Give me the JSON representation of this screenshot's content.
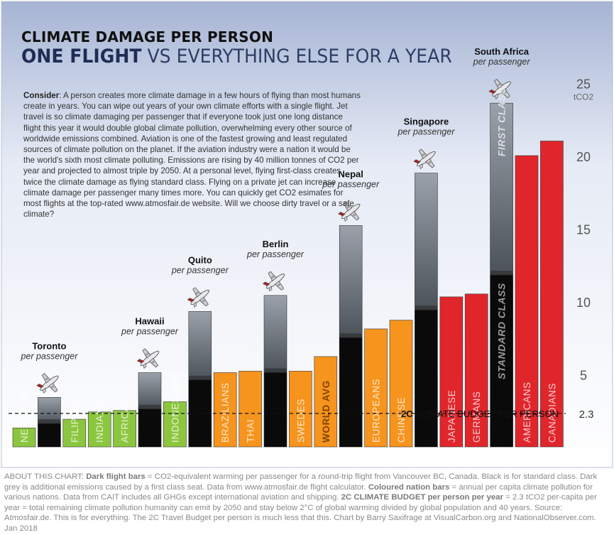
{
  "title": {
    "line1": "CLIMATE DAMAGE PER PERSON",
    "line2_bold": "ONE FLIGHT",
    "line2_rest": " VS EVERYTHING ELSE FOR A YEAR"
  },
  "consider": {
    "label": "Consider",
    "text": ": A person creates more climate damage in a few hours of flying than most humans create in years. You can wipe out years of your own climate efforts with a single flight. Jet travel is so climate damaging per passenger that if everyone took just one long distance flight this year it would double global climate pollution, overwhelming every other source of worldwide emissions combined. Aviation is one of the fastest growing and least regulated sources of climate pollution on the planet. If the aviation industry were a nation it would be the world's sixth most climate polluting. Emissions are rising by 40 million tonnes of CO2 per year and projected to almost triple by 2050. At a personal level, flying first-class creates twice the climate damage as flying standard class. Flying on a private jet can increase climate damage per passenger many times more. You can quickly get CO2 esimates for most flights at the top-rated www.atmosfair.de website. Will we choose dirty travel or a safe climate?"
  },
  "footer": {
    "l1": "ABOUT THIS CHART: ",
    "b1": "Dark flight bars",
    "t1": " = CO2-equivalent warming per passenger for a round-trip flight from Vancouver BC, Canada. Black is for standard class. Dark grey is additional emissions caused by a first class seat. Data from www.atmosfair.de flight calculator. ",
    "b2": "Coloured nation bars",
    "t2": " = annual per capita climate pollution for various nations. Data from CAIT includes all GHGs except international aviation and shipping. ",
    "b3": "2C CLIMATE BUDGET per person per year",
    "t3": " = 2.3 tCO2 per-capita per year = total remaining climate pollution humanity can emit by 2050 and stay below 2°C of global warming divided by global population and 40 years. Source: Atmosfair.de. This is for everything. The 2C Travel Budget per person is much less that this. Chart by Barry Saxifrage at VisualCarbon.org and NationalObserver.com. Jan 2018"
  },
  "chart_data": {
    "type": "bar",
    "ylim": [
      0,
      26
    ],
    "ylabel": "tCO2",
    "yticks": [
      5,
      10,
      15,
      20,
      25
    ],
    "budget": {
      "value": 2.3,
      "label_bold": "2C",
      "label_rest": " CLIMATE BUDGET PER PERSON",
      "tick_label": "2.3"
    },
    "per_passenger": "per passenger",
    "first_class_label": "FIRST CLASS",
    "standard_class_label": "STANDARD CLASS",
    "colors": {
      "green": "#8cc63f",
      "orange": "#f7941d",
      "red": "#e0262b",
      "black": "#0a0a0a",
      "grey": "#6d747c"
    },
    "bars": [
      {
        "kind": "nation",
        "label": "NEPALESE",
        "value": 1.3,
        "color": "green"
      },
      {
        "kind": "flight",
        "city": "Toronto",
        "standard": 1.6,
        "first": 3.4
      },
      {
        "kind": "nation",
        "label": "FILIPINOS",
        "value": 1.9,
        "color": "green"
      },
      {
        "kind": "nation",
        "label": "INDIANS",
        "value": 2.4,
        "color": "green"
      },
      {
        "kind": "nation",
        "label": "AFRICANS",
        "value": 2.5,
        "color": "green"
      },
      {
        "kind": "flight",
        "city": "Hawaii",
        "standard": 2.6,
        "first": 5.1
      },
      {
        "kind": "nation",
        "label": "INDONESIANS",
        "value": 3.1,
        "color": "green"
      },
      {
        "kind": "flight",
        "city": "Quito",
        "standard": 4.6,
        "first": 9.3
      },
      {
        "kind": "nation",
        "label": "BRAZILIANS",
        "value": 5.1,
        "color": "orange"
      },
      {
        "kind": "nation",
        "label": "THAI",
        "value": 5.2,
        "color": "orange"
      },
      {
        "kind": "flight",
        "city": "Berlin",
        "standard": 5.1,
        "first": 10.4
      },
      {
        "kind": "nation",
        "label": "SWEDES",
        "value": 5.2,
        "color": "orange"
      },
      {
        "kind": "nation",
        "label": "WORLD AVG",
        "value": 6.2,
        "color": "orange",
        "bold": true
      },
      {
        "kind": "flight",
        "city": "Nepal",
        "standard": 7.5,
        "first": 15.2
      },
      {
        "kind": "nation",
        "label": "EUROPEANS",
        "value": 8.1,
        "color": "orange"
      },
      {
        "kind": "nation",
        "label": "CHINESE",
        "value": 8.7,
        "color": "orange"
      },
      {
        "kind": "flight",
        "city": "Singapore",
        "standard": 9.4,
        "first": 18.8
      },
      {
        "kind": "nation",
        "label": "JAPANESE",
        "value": 10.3,
        "color": "red"
      },
      {
        "kind": "nation",
        "label": "GERMANS",
        "value": 10.5,
        "color": "red"
      },
      {
        "kind": "flight",
        "city": "South Africa",
        "standard": 11.8,
        "first": 23.6,
        "class_labels": true
      },
      {
        "kind": "nation",
        "label": "AMERICANS",
        "value": 20.0,
        "color": "red"
      },
      {
        "kind": "nation",
        "label": "CANADIANS",
        "value": 21.0,
        "color": "red"
      }
    ]
  }
}
